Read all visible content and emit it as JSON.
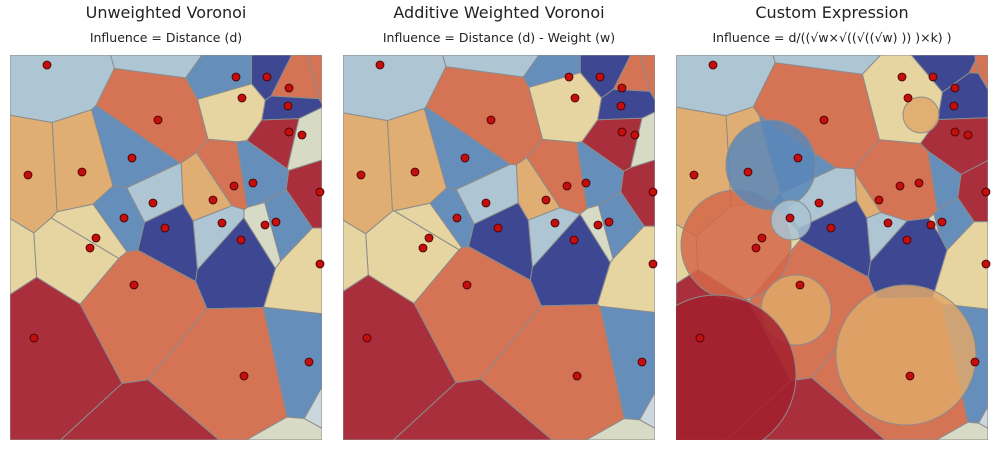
{
  "panels": [
    {
      "title": "Unweighted Voronoi",
      "subtitle": "Influence = Distance (d)"
    },
    {
      "title": "Additive Weighted Voronoi",
      "subtitle": "Influence = Distance (d) - Weight (w)"
    },
    {
      "title": "Custom Expression",
      "subtitle": "Influence = d/((√w×√((√((√w) )) )×k) )"
    }
  ]
}
